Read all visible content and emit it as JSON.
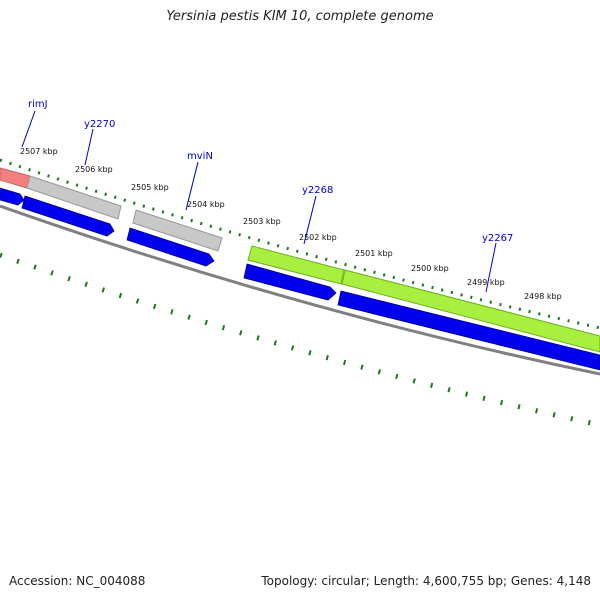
{
  "title": "Yersinia pestis KIM 10, complete genome",
  "footer": {
    "accession": "Accession: NC_004088",
    "summary": "Topology: circular; Length: 4,600,755 bp; Genes: 4,148"
  },
  "colors": {
    "backbone": "#808080",
    "tick": "#1a7a1a",
    "cds_forward": "#0000ee",
    "gene_grey": "#c0c0c0",
    "gene_green": "#a8f040",
    "gene_red": "#f08080",
    "label_blue": "#0000cc"
  },
  "ruler_labels": [
    "2507 kbp",
    "2506 kbp",
    "2505 kbp",
    "2504 kbp",
    "2503 kbp",
    "2502 kbp",
    "2501 kbp",
    "2500 kbp",
    "2499 kbp",
    "2498 kbp"
  ],
  "gene_labels": [
    "rimJ",
    "y2270",
    "mviN",
    "y2268",
    "y2267"
  ]
}
